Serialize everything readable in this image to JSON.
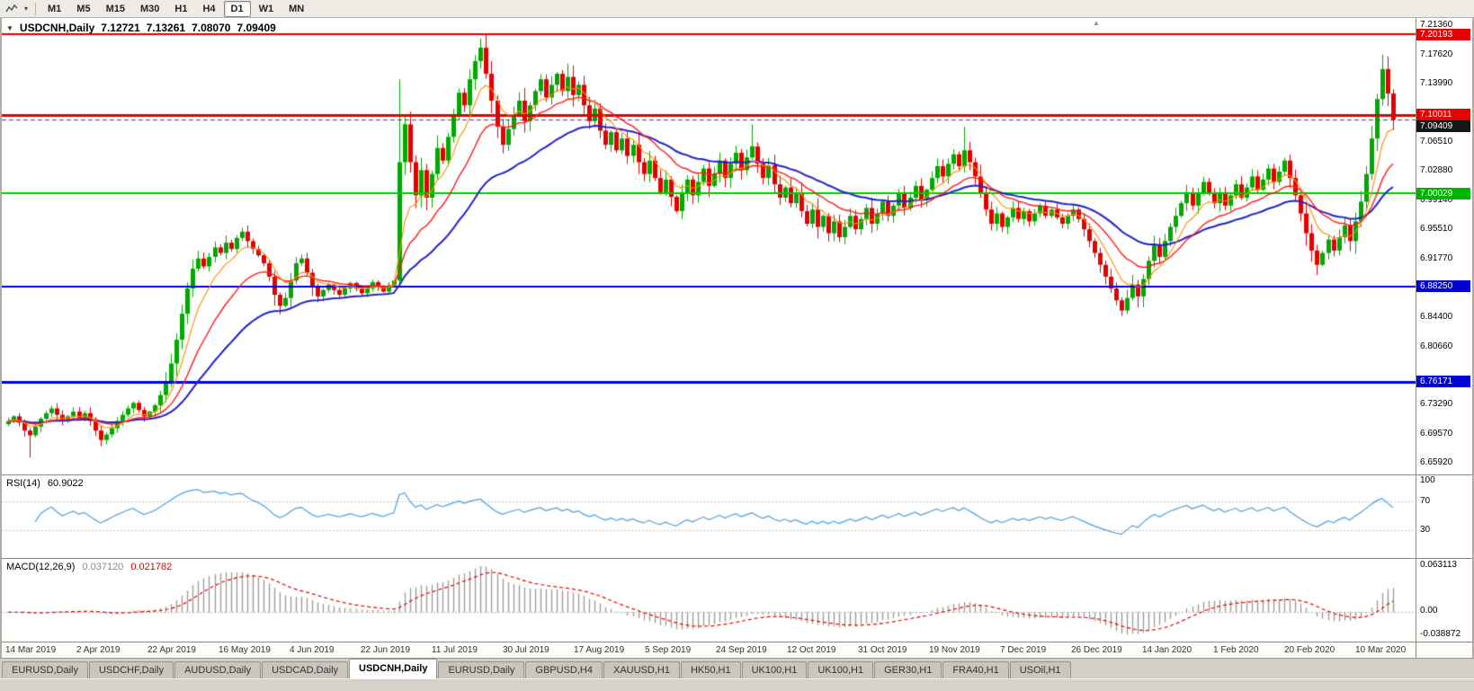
{
  "icons": {
    "chart_menu": "▼",
    "shift_marker": "▲",
    "dropdown_caret": "▾"
  },
  "toolbar": {
    "timeframes": [
      "M1",
      "M5",
      "M15",
      "M30",
      "H1",
      "H4",
      "D1",
      "W1",
      "MN"
    ],
    "active_timeframe": "D1"
  },
  "chart": {
    "title": "USDCNH,Daily",
    "ohlc": {
      "open": "7.12721",
      "high": "7.13261",
      "low": "7.08070",
      "close": "7.09409"
    },
    "price_axis": [
      {
        "label": "7.21360",
        "value": 7.2136,
        "type": "tick"
      },
      {
        "label": "7.20193",
        "value": 7.20193,
        "type": "badge",
        "color": "#e60000"
      },
      {
        "label": "7.17620",
        "value": 7.1762,
        "type": "tick"
      },
      {
        "label": "7.13990",
        "value": 7.1399,
        "type": "tick"
      },
      {
        "label": "7.10011",
        "value": 7.10011,
        "type": "badge",
        "color": "#e60000"
      },
      {
        "label": "7.09409",
        "value": 7.09409,
        "type": "badge",
        "color": "#161616"
      },
      {
        "label": "7.06510",
        "value": 7.0651,
        "type": "tick"
      },
      {
        "label": "7.02880",
        "value": 7.0288,
        "type": "tick"
      },
      {
        "label": "7.00029",
        "value": 7.00029,
        "type": "badge",
        "color": "#00b400"
      },
      {
        "label": "6.99140",
        "value": 6.9914,
        "type": "tick"
      },
      {
        "label": "6.95510",
        "value": 6.9551,
        "type": "tick"
      },
      {
        "label": "6.91770",
        "value": 6.9177,
        "type": "tick"
      },
      {
        "label": "6.88250",
        "value": 6.8825,
        "type": "badge",
        "color": "#0000d2"
      },
      {
        "label": "6.84400",
        "value": 6.844,
        "type": "tick"
      },
      {
        "label": "6.80660",
        "value": 6.8066,
        "type": "tick"
      },
      {
        "label": "6.76171",
        "value": 6.76171,
        "type": "badge",
        "color": "#0000d2"
      },
      {
        "label": "6.73290",
        "value": 6.7329,
        "type": "tick"
      },
      {
        "label": "6.69570",
        "value": 6.6957,
        "type": "tick"
      },
      {
        "label": "6.65920",
        "value": 6.6592,
        "type": "tick"
      }
    ],
    "levels": [
      {
        "value": 7.20193,
        "color": "#e60000",
        "width": 2,
        "style": "solid"
      },
      {
        "value": 7.10011,
        "color": "#e60000",
        "width": 3,
        "style": "solid"
      },
      {
        "value": 7.09409,
        "color": "#505050",
        "width": 1,
        "style": "dash"
      },
      {
        "value": 7.00029,
        "color": "#00c800",
        "width": 2,
        "style": "solid"
      },
      {
        "value": 6.8825,
        "color": "#0000e6",
        "width": 2,
        "style": "solid"
      },
      {
        "value": 6.76171,
        "color": "#0000e6",
        "width": 3,
        "style": "solid"
      }
    ]
  },
  "indicators": {
    "rsi": {
      "label": "RSI(14)",
      "value": "60.9022",
      "axis_labels": [
        {
          "label": "100",
          "value": 100
        },
        {
          "label": "70",
          "value": 70
        },
        {
          "label": "30",
          "value": 30
        }
      ],
      "level_lines": [
        70,
        30
      ],
      "line_color": "#4d9fe0"
    },
    "macd": {
      "label": "MACD(12,26,9)",
      "main_value": "0.037120",
      "signal_value": "0.021782",
      "axis_top": "0.063113",
      "axis_zero": "0.00",
      "axis_bottom": "-0.038872",
      "hist_color": "#9a9a9a",
      "signal_color": "#e60000"
    }
  },
  "chart_data": {
    "type": "candlestick",
    "symbol": "USDCNH",
    "timeframe": "Daily",
    "y_range": [
      6.6592,
      7.2136
    ],
    "rsi_period": 14,
    "macd_params": [
      12,
      26,
      9
    ],
    "ma_periods": {
      "fast": 7,
      "mid": 16,
      "slow": 34
    },
    "colors": {
      "up": "#00a800",
      "down": "#e30000",
      "ma_fast": "#ff8c00",
      "ma_mid": "#ff1a1a",
      "ma_slow": "#2222cc"
    },
    "x_labels": [
      "14 Mar 2019",
      "2 Apr 2019",
      "22 Apr 2019",
      "16 May 2019",
      "4 Jun 2019",
      "22 Jun 2019",
      "11 Jul 2019",
      "30 Jul 2019",
      "17 Aug 2019",
      "5 Sep 2019",
      "24 Sep 2019",
      "12 Oct 2019",
      "31 Oct 2019",
      "19 Nov 2019",
      "7 Dec 2019",
      "26 Dec 2019",
      "14 Jan 2020",
      "1 Feb 2020",
      "20 Feb 2020",
      "10 Mar 2020"
    ],
    "first_open": 6.708,
    "closes": [
      6.712,
      6.718,
      6.71,
      6.7,
      6.694,
      6.705,
      6.715,
      6.722,
      6.728,
      6.72,
      6.712,
      6.718,
      6.724,
      6.716,
      6.722,
      6.712,
      6.7,
      6.688,
      6.695,
      6.703,
      6.712,
      6.72,
      6.728,
      6.735,
      6.726,
      6.718,
      6.724,
      6.732,
      6.745,
      6.762,
      6.785,
      6.815,
      6.848,
      6.88,
      6.905,
      6.918,
      6.908,
      6.92,
      6.932,
      6.925,
      6.938,
      6.93,
      6.944,
      6.952,
      6.94,
      6.93,
      6.922,
      6.912,
      6.895,
      6.872,
      6.858,
      6.868,
      6.89,
      6.912,
      6.918,
      6.9,
      6.882,
      6.87,
      6.878,
      6.885,
      6.878,
      6.872,
      6.88,
      6.887,
      6.88,
      6.874,
      6.88,
      6.888,
      6.882,
      6.876,
      6.884,
      6.89,
      7.04,
      7.088,
      7.04,
      6.998,
      7.03,
      6.995,
      7.025,
      7.058,
      7.042,
      7.072,
      7.1,
      7.128,
      7.112,
      7.145,
      7.168,
      7.185,
      7.152,
      7.118,
      7.085,
      7.062,
      7.082,
      7.1,
      7.118,
      7.092,
      7.112,
      7.13,
      7.145,
      7.122,
      7.138,
      7.152,
      7.13,
      7.148,
      7.125,
      7.138,
      7.112,
      7.092,
      7.108,
      7.08,
      7.062,
      7.078,
      7.055,
      7.07,
      7.048,
      7.062,
      7.04,
      7.025,
      7.042,
      7.02,
      7.002,
      7.018,
      6.996,
      6.978,
      7.0,
      7.018,
      6.998,
      7.015,
      7.032,
      7.01,
      7.025,
      7.042,
      7.02,
      7.038,
      7.052,
      7.03,
      7.046,
      7.06,
      7.038,
      7.02,
      7.036,
      7.012,
      6.995,
      7.008,
      6.988,
      7.0,
      6.978,
      6.962,
      6.98,
      6.958,
      6.972,
      6.95,
      6.965,
      6.945,
      6.958,
      6.972,
      6.955,
      6.968,
      6.982,
      6.962,
      6.975,
      6.99,
      6.972,
      6.985,
      7.0,
      6.982,
      6.995,
      7.01,
      6.992,
      7.005,
      7.02,
      7.035,
      7.022,
      7.038,
      7.05,
      7.035,
      7.055,
      7.04,
      7.022,
      7.0,
      6.98,
      6.962,
      6.975,
      6.958,
      6.97,
      6.982,
      6.968,
      6.978,
      6.965,
      6.975,
      6.985,
      6.972,
      6.98,
      6.97,
      6.962,
      6.972,
      6.98,
      6.968,
      6.955,
      6.94,
      6.925,
      6.91,
      6.895,
      6.88,
      6.865,
      6.852,
      6.868,
      6.885,
      6.87,
      6.892,
      6.915,
      6.935,
      6.92,
      6.94,
      6.958,
      6.972,
      6.988,
      7.002,
      6.985,
      7.0,
      7.015,
      7.0,
      6.988,
      7.002,
      6.985,
      6.998,
      7.012,
      6.995,
      7.008,
      7.022,
      7.005,
      7.018,
      7.032,
      7.015,
      7.028,
      7.042,
      7.02,
      6.998,
      6.975,
      6.95,
      6.928,
      6.91,
      6.925,
      6.942,
      6.928,
      6.945,
      6.96,
      6.94,
      6.965,
      6.99,
      7.025,
      7.07,
      7.12,
      7.158,
      7.127,
      7.094
    ],
    "wick_overrides": {
      "4": {
        "low": 6.666
      },
      "17": {
        "low": 6.68
      },
      "50": {
        "low": 6.847
      },
      "72": {
        "high": 7.145,
        "low": 6.884
      },
      "87": {
        "high": 7.197
      },
      "103": {
        "high": 7.165
      },
      "137": {
        "high": 7.088
      },
      "176": {
        "high": 7.085
      },
      "205": {
        "low": 6.8452
      },
      "208": {
        "low": 6.856
      },
      "241": {
        "low": 6.897
      },
      "253": {
        "high": 7.1762
      },
      "255": {
        "high": 7.13261,
        "low": 7.0807
      }
    }
  },
  "tabs": {
    "active_index": 4,
    "items": [
      "EURUSD,Daily",
      "USDCHF,Daily",
      "AUDUSD,Daily",
      "USDCAD,Daily",
      "USDCNH,Daily",
      "EURUSD,Daily",
      "GBPUSD,H4",
      "XAUUSD,H1",
      "HK50,H1",
      "UK100,H1",
      "UK100,H1",
      "GER30,H1",
      "FRA40,H1",
      "USOil,H1"
    ]
  }
}
